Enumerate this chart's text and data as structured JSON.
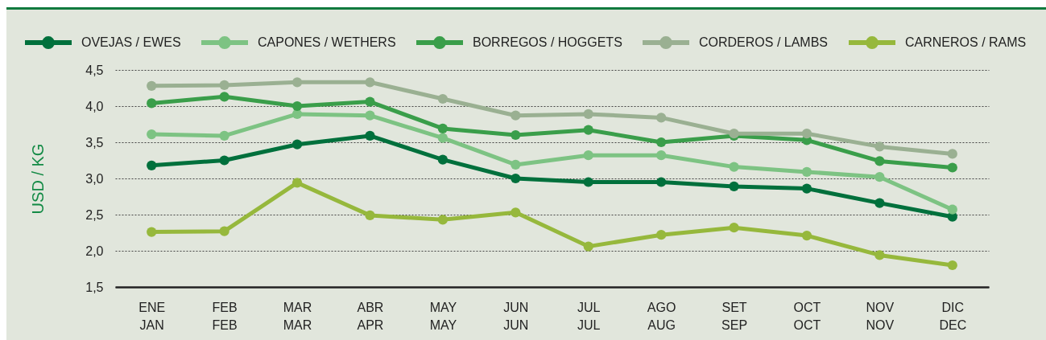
{
  "chart_data": {
    "type": "line",
    "ylabel": "USD / KG",
    "categories": [
      "ENE\nJAN",
      "FEB\nFEB",
      "MAR\nMAR",
      "ABR\nAPR",
      "MAY\nMAY",
      "JUN\nJUN",
      "JUL\nJUL",
      "AGO\nAUG",
      "SET\nSEP",
      "OCT\nOCT",
      "NOV\nNOV",
      "DIC\nDEC"
    ],
    "series": [
      {
        "name": "OVEJAS / EWES",
        "color": "#00703c",
        "values": [
          3.18,
          3.25,
          3.47,
          3.59,
          3.26,
          3.0,
          2.95,
          2.95,
          2.89,
          2.86,
          2.66,
          2.47
        ]
      },
      {
        "name": "CAPONES / WETHERS",
        "color": "#7dc383",
        "values": [
          3.61,
          3.59,
          3.89,
          3.87,
          3.56,
          3.19,
          3.32,
          3.32,
          3.16,
          3.09,
          3.02,
          2.57
        ]
      },
      {
        "name": "BORREGOS / HOGGETS",
        "color": "#3a9e4a",
        "values": [
          4.04,
          4.13,
          4.0,
          4.06,
          3.69,
          3.6,
          3.67,
          3.5,
          3.59,
          3.53,
          3.24,
          3.15
        ]
      },
      {
        "name": "CORDEROS / LAMBS",
        "color": "#9ab092",
        "values": [
          4.28,
          4.29,
          4.33,
          4.33,
          4.1,
          3.87,
          3.89,
          3.84,
          3.62,
          3.62,
          3.44,
          3.34
        ]
      },
      {
        "name": "CARNEROS / RAMS",
        "color": "#96b83c",
        "values": [
          2.26,
          2.27,
          2.94,
          2.49,
          2.43,
          2.53,
          2.06,
          2.22,
          2.32,
          2.21,
          1.94,
          1.8
        ]
      }
    ],
    "ylim": [
      1.5,
      4.5
    ],
    "yticks": [
      {
        "value": 1.5,
        "label": "1,5"
      },
      {
        "value": 2,
        "label": "2,0"
      },
      {
        "value": 2.5,
        "label": "2,5"
      },
      {
        "value": 3,
        "label": "3,0"
      },
      {
        "value": 3.5,
        "label": "3,5"
      },
      {
        "value": 4,
        "label": "4,0"
      },
      {
        "value": 4.5,
        "label": "4,5"
      }
    ],
    "grid": "y",
    "legend": "top",
    "marker": "circle",
    "line_style": "solid"
  }
}
